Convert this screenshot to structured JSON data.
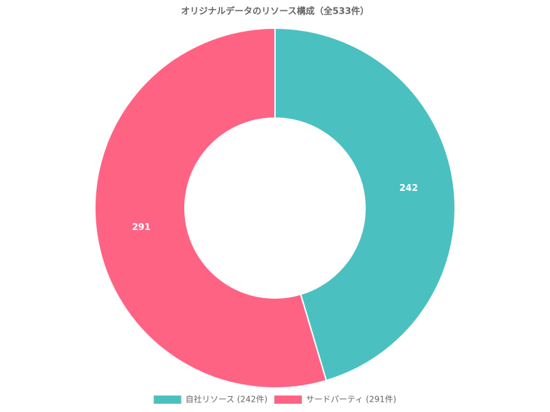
{
  "chart_data": {
    "type": "doughnut",
    "title": "オリジナルデータのリソース構成（全533件）",
    "categories": [
      "自社リソース (242件)",
      "サードパーティ (291件)"
    ],
    "values": [
      242,
      291
    ],
    "colors": [
      "#4bc0c0",
      "#ff6384"
    ],
    "legend": "bottom"
  }
}
